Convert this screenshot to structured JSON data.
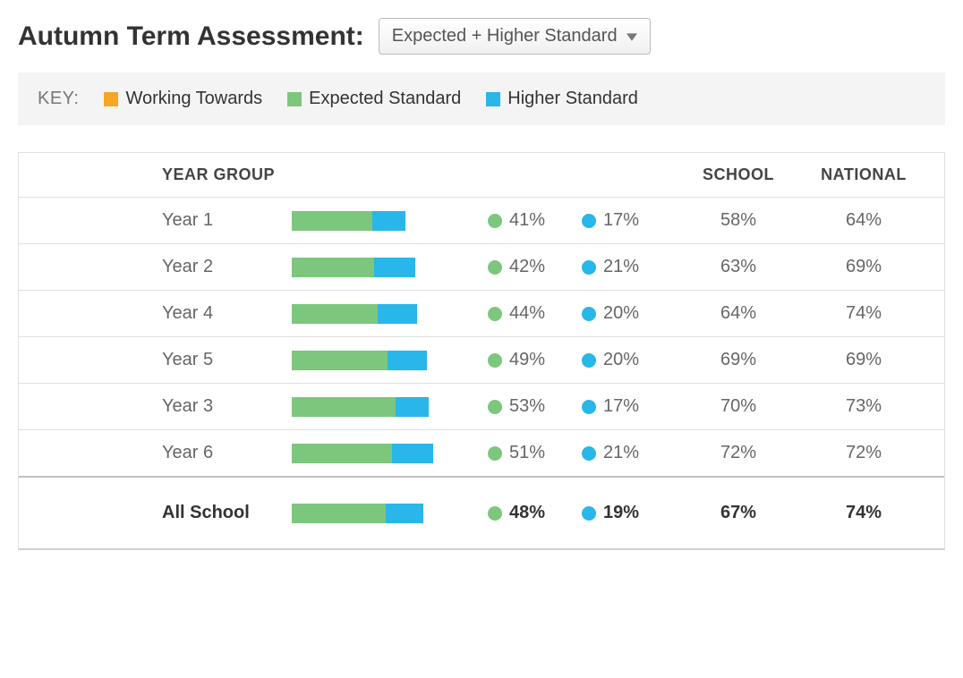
{
  "title": "Autumn Term Assessment:",
  "dropdown": {
    "selected": "Expected + Higher Standard"
  },
  "key": {
    "label": "KEY:",
    "items": [
      {
        "label": "Working Towards",
        "color": "#f5a623"
      },
      {
        "label": "Expected Standard",
        "color": "#7dc67d"
      },
      {
        "label": "Higher Standard",
        "color": "#29b6e8"
      }
    ]
  },
  "colors": {
    "expected": "#7dc67d",
    "higher": "#29b6e8",
    "working_towards": "#f5a623",
    "row_border": "#e0e0e0",
    "key_bg": "#f4f4f4",
    "school_col_bg": "#eaeaea",
    "text_muted": "#666666",
    "text_strong": "#333333"
  },
  "table": {
    "headers": {
      "year_group": "YEAR GROUP",
      "school": "SCHOOL",
      "national": "NATIONAL"
    },
    "bar_max_pct": 100,
    "rows": [
      {
        "label": "Year 1",
        "expected": 41,
        "higher": 17,
        "school": 58,
        "national": 64
      },
      {
        "label": "Year 2",
        "expected": 42,
        "higher": 21,
        "school": 63,
        "national": 69
      },
      {
        "label": "Year 4",
        "expected": 44,
        "higher": 20,
        "school": 64,
        "national": 74
      },
      {
        "label": "Year 5",
        "expected": 49,
        "higher": 20,
        "school": 69,
        "national": 69
      },
      {
        "label": "Year 3",
        "expected": 53,
        "higher": 17,
        "school": 70,
        "national": 73
      },
      {
        "label": "Year 6",
        "expected": 51,
        "higher": 21,
        "school": 72,
        "national": 72
      }
    ],
    "summary": {
      "label": "All School",
      "expected": 48,
      "higher": 19,
      "school": 67,
      "national": 74
    }
  },
  "typography": {
    "title_fontsize": 30,
    "body_fontsize": 20,
    "header_fontsize": 18
  }
}
